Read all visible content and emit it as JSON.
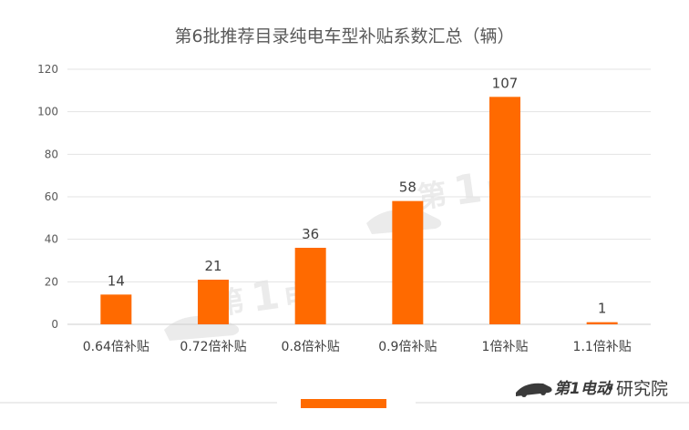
{
  "chart_data": {
    "type": "bar",
    "title": "第6批推荐目录纯电车型补贴系数汇总（辆）",
    "categories": [
      "0.64倍补贴",
      "0.72倍补贴",
      "0.8倍补贴",
      "0.9倍补贴",
      "1倍补贴",
      "1.1倍补贴"
    ],
    "values": [
      14,
      21,
      36,
      58,
      107,
      1
    ],
    "ylim": [
      0,
      120
    ],
    "yticks": [
      0,
      20,
      40,
      60,
      80,
      100,
      120
    ],
    "grid": true,
    "legend": "none",
    "bar_color": "#FF6A00"
  },
  "brand": {
    "logo_text": "第1电动",
    "separator": "•",
    "label": "研究院"
  },
  "colors": {
    "accent": "#FF6A00",
    "grid": "#d9d9d9",
    "text": "#595959"
  }
}
